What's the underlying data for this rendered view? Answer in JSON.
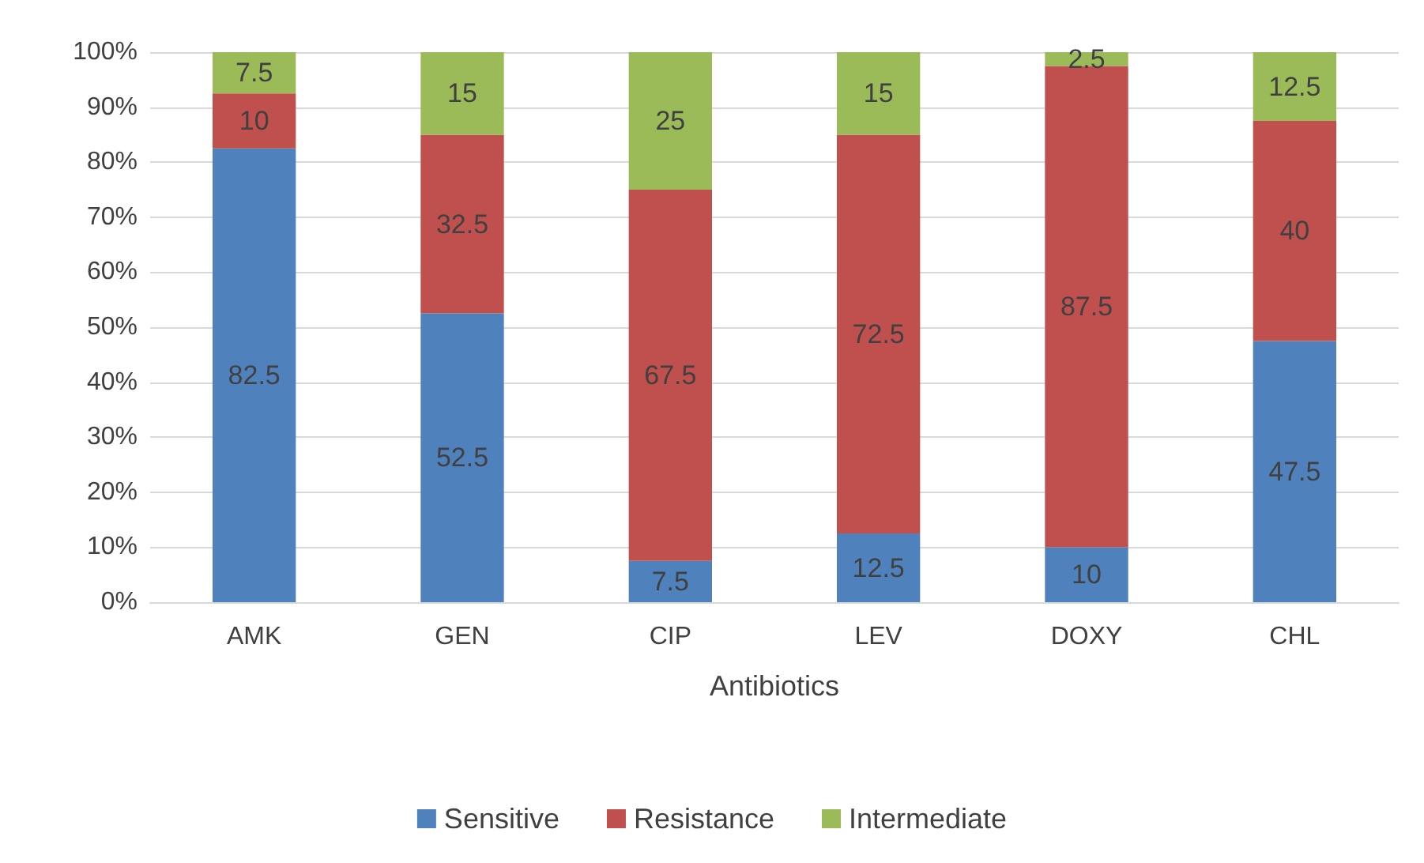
{
  "chart_data": {
    "type": "bar",
    "stacked": true,
    "xlabel": "Antibiotics",
    "categories": [
      "AMK",
      "GEN",
      "CIP",
      "LEV",
      "DOXY",
      "CHL"
    ],
    "series": [
      {
        "name": "Sensitive",
        "color": "#4f81bd",
        "values": [
          82.5,
          52.5,
          7.5,
          12.5,
          10,
          47.5
        ]
      },
      {
        "name": "Resistance",
        "color": "#c0504d",
        "values": [
          10,
          32.5,
          67.5,
          72.5,
          87.5,
          40
        ]
      },
      {
        "name": "Intermediate",
        "color": "#9bbb59",
        "values": [
          7.5,
          15,
          25,
          15,
          2.5,
          12.5
        ]
      }
    ],
    "ylim": [
      0,
      100
    ],
    "yticks": [
      {
        "value": 0,
        "label": "0%"
      },
      {
        "value": 10,
        "label": "10%"
      },
      {
        "value": 20,
        "label": "20%"
      },
      {
        "value": 30,
        "label": "30%"
      },
      {
        "value": 40,
        "label": "40%"
      },
      {
        "value": 50,
        "label": "50%"
      },
      {
        "value": 60,
        "label": "60%"
      },
      {
        "value": 70,
        "label": "70%"
      },
      {
        "value": 80,
        "label": "80%"
      },
      {
        "value": 90,
        "label": "90%"
      },
      {
        "value": 100,
        "label": "100%"
      }
    ],
    "grid": "y",
    "legend": "bottom",
    "data_labels": true
  }
}
